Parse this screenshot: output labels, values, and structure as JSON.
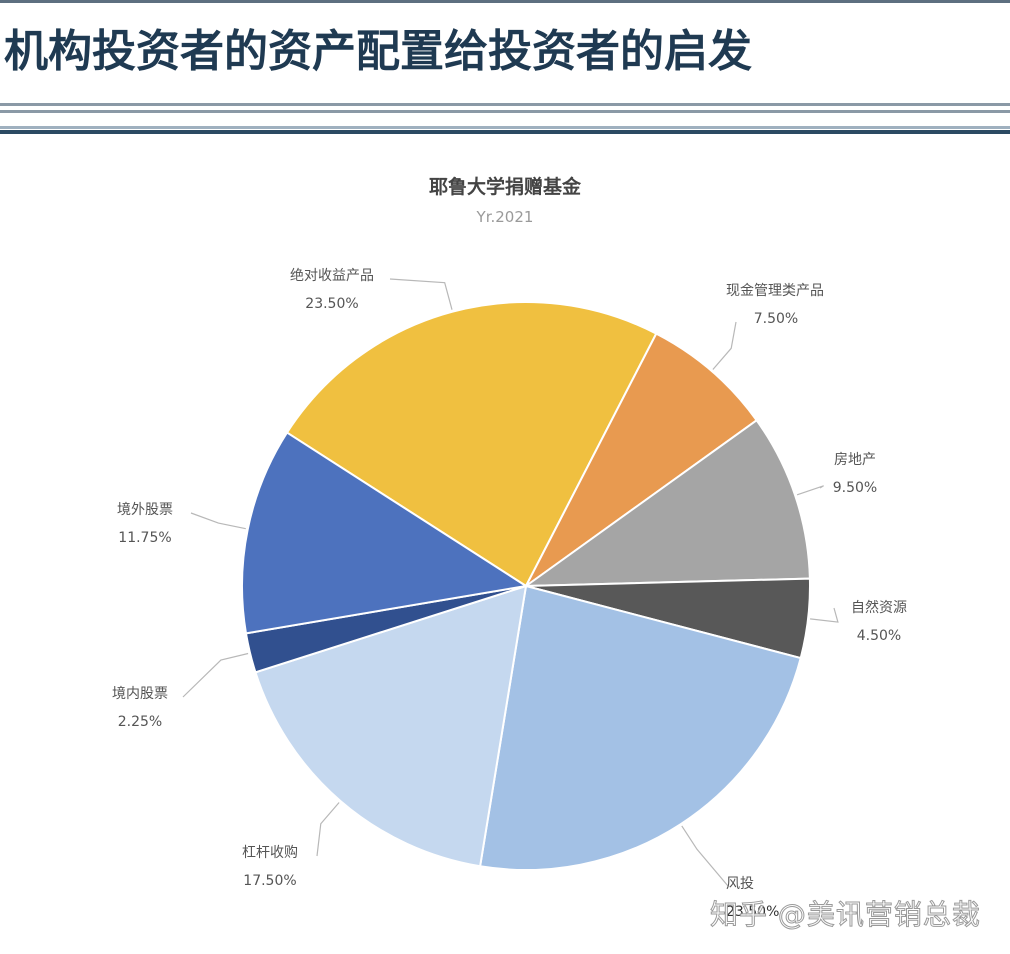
{
  "page": {
    "title": "机构投资者的资产配置给投资者的启发"
  },
  "chart_data": {
    "type": "pie",
    "title": "耶鲁大学捐赠基金",
    "subtitle": "Yr.2021",
    "start_angle_deg": 302.7,
    "direction": "clockwise",
    "slices": [
      {
        "label": "绝对收益产品",
        "value": 23.5,
        "display": "23.50%",
        "color": "#f0c040"
      },
      {
        "label": "现金管理类产品",
        "value": 7.5,
        "display": "7.50%",
        "color": "#e89a50"
      },
      {
        "label": "房地产",
        "value": 9.5,
        "display": "9.50%",
        "color": "#a5a5a5"
      },
      {
        "label": "自然资源",
        "value": 4.5,
        "display": "4.50%",
        "color": "#585858"
      },
      {
        "label": "风投",
        "value": 23.5,
        "display": "23.50%",
        "color": "#a3c1e5"
      },
      {
        "label": "杠杆收购",
        "value": 17.5,
        "display": "17.50%",
        "color": "#c5d8ef"
      },
      {
        "label": "境内股票",
        "value": 2.25,
        "display": "2.25%",
        "color": "#31508f"
      },
      {
        "label": "境外股票",
        "value": 11.75,
        "display": "11.75%",
        "color": "#4d72be"
      }
    ],
    "legend": "none (leader-line data labels)"
  },
  "watermark": "知乎 @美讯营销总裁"
}
